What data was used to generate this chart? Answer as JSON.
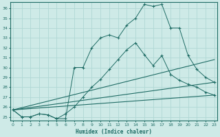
{
  "xlabel": "Humidex (Indice chaleur)",
  "ylabel": "",
  "bg_color": "#ceeae7",
  "line_color": "#1e6b64",
  "grid_color": "#b0d8d4",
  "xlim": [
    0,
    23
  ],
  "ylim": [
    24.6,
    36.6
  ],
  "yticks": [
    25,
    26,
    27,
    28,
    29,
    30,
    31,
    32,
    33,
    34,
    35,
    36
  ],
  "xticks": [
    0,
    1,
    2,
    3,
    4,
    5,
    6,
    7,
    8,
    9,
    10,
    11,
    12,
    13,
    14,
    15,
    16,
    17,
    18,
    19,
    20,
    21,
    22,
    23
  ],
  "series1_x": [
    0,
    1,
    2,
    3,
    4,
    5,
    6,
    7,
    8,
    9,
    10,
    11,
    12,
    13,
    14,
    15,
    16,
    17,
    18,
    19,
    20,
    21,
    22,
    23
  ],
  "series1_y": [
    25.7,
    25.0,
    25.0,
    25.3,
    25.2,
    24.8,
    24.8,
    30.0,
    30.0,
    32.0,
    33.0,
    33.3,
    33.0,
    34.3,
    35.0,
    36.4,
    36.2,
    36.4,
    34.0,
    34.0,
    31.2,
    29.8,
    29.0,
    28.5
  ],
  "series2_x": [
    0,
    1,
    2,
    3,
    4,
    5,
    6,
    7,
    8,
    9,
    10,
    11,
    12,
    13,
    14,
    15,
    16,
    17,
    18,
    19,
    20,
    21,
    22,
    23
  ],
  "series2_y": [
    25.7,
    25.0,
    25.0,
    25.3,
    25.2,
    24.8,
    25.3,
    26.0,
    27.0,
    28.0,
    28.8,
    29.8,
    30.8,
    31.8,
    32.5,
    31.3,
    30.2,
    31.2,
    29.3,
    28.7,
    28.3,
    28.0,
    27.5,
    27.2
  ],
  "series3_x": [
    0,
    23
  ],
  "series3_y": [
    25.7,
    27.2
  ],
  "series4_x": [
    0,
    23
  ],
  "series4_y": [
    25.7,
    30.8
  ],
  "series5_x": [
    0,
    23
  ],
  "series5_y": [
    25.7,
    28.5
  ]
}
